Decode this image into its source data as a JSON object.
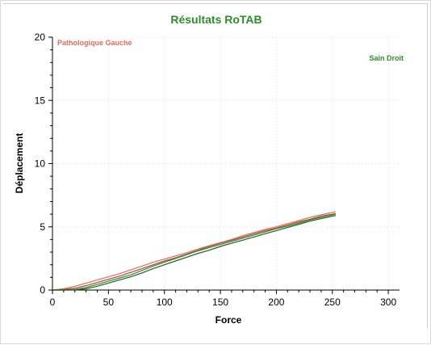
{
  "chart_data": {
    "type": "line",
    "title": "Résultats RoTAB",
    "xlabel": "Force",
    "ylabel": "Déplacement",
    "xlim": [
      0,
      310
    ],
    "ylim": [
      0,
      20
    ],
    "xticks": [
      0,
      50,
      100,
      150,
      200,
      250,
      300
    ],
    "yticks": [
      0,
      5,
      10,
      15,
      20
    ],
    "xtick_labels": [
      "0",
      "50",
      "100",
      "150",
      "200",
      "250",
      "300"
    ],
    "ytick_labels": [
      "0",
      "5",
      "10",
      "15",
      "20"
    ],
    "grid": true,
    "legend": [
      {
        "label": "Pathologique Gauche",
        "color": "#e06a5a",
        "placement": "top-left"
      },
      {
        "label": "Sain Droit",
        "color": "#2e8b2e",
        "placement": "top-right"
      }
    ],
    "colors": {
      "title": "#2e8b2e",
      "pathologique": "#e06a5a",
      "pathologique_dark": "#b2443a",
      "sain": "#2e8b2e",
      "sain_dark": "#1f5f1f"
    },
    "series": [
      {
        "key": "patho_1",
        "color": "#e06a5a",
        "x": [
          0,
          10,
          20,
          30,
          40,
          50,
          60,
          70,
          80,
          90,
          100,
          110,
          120,
          130,
          140,
          150,
          160,
          170,
          180,
          190,
          200,
          210,
          220,
          230,
          240,
          253
        ],
        "y": [
          0.0,
          0.1,
          0.3,
          0.55,
          0.8,
          1.05,
          1.3,
          1.6,
          1.9,
          2.2,
          2.45,
          2.7,
          2.95,
          3.25,
          3.5,
          3.75,
          4.0,
          4.3,
          4.55,
          4.8,
          5.0,
          5.25,
          5.5,
          5.75,
          5.95,
          6.2
        ]
      },
      {
        "key": "patho_2",
        "color": "#b2443a",
        "x": [
          0,
          10,
          20,
          30,
          40,
          50,
          60,
          70,
          80,
          90,
          100,
          110,
          120,
          130,
          140,
          150,
          160,
          170,
          180,
          190,
          200,
          210,
          220,
          230,
          240,
          253
        ],
        "y": [
          0.0,
          0.05,
          0.15,
          0.35,
          0.6,
          0.85,
          1.1,
          1.4,
          1.7,
          2.0,
          2.3,
          2.55,
          2.85,
          3.15,
          3.45,
          3.7,
          3.95,
          4.2,
          4.45,
          4.7,
          4.9,
          5.15,
          5.4,
          5.6,
          5.85,
          6.05
        ]
      },
      {
        "key": "sain_1",
        "color": "#2e8b2e",
        "x": [
          0,
          10,
          20,
          30,
          40,
          50,
          60,
          70,
          80,
          90,
          100,
          110,
          120,
          130,
          140,
          150,
          160,
          170,
          180,
          190,
          200,
          210,
          220,
          230,
          240,
          253
        ],
        "y": [
          0.0,
          0.0,
          0.05,
          0.2,
          0.45,
          0.7,
          0.95,
          1.2,
          1.55,
          1.9,
          2.2,
          2.5,
          2.8,
          3.1,
          3.35,
          3.6,
          3.85,
          4.1,
          4.35,
          4.6,
          4.85,
          5.05,
          5.3,
          5.55,
          5.75,
          6.0
        ]
      },
      {
        "key": "sain_2",
        "color": "#1f5f1f",
        "x": [
          0,
          10,
          20,
          30,
          40,
          50,
          60,
          70,
          80,
          90,
          100,
          110,
          120,
          130,
          140,
          150,
          160,
          170,
          180,
          190,
          200,
          210,
          220,
          230,
          240,
          253
        ],
        "y": [
          0.0,
          0.0,
          0.0,
          0.1,
          0.3,
          0.55,
          0.8,
          1.05,
          1.35,
          1.7,
          2.0,
          2.3,
          2.6,
          2.9,
          3.15,
          3.45,
          3.7,
          3.95,
          4.2,
          4.45,
          4.7,
          4.95,
          5.2,
          5.45,
          5.65,
          5.9
        ]
      }
    ]
  }
}
